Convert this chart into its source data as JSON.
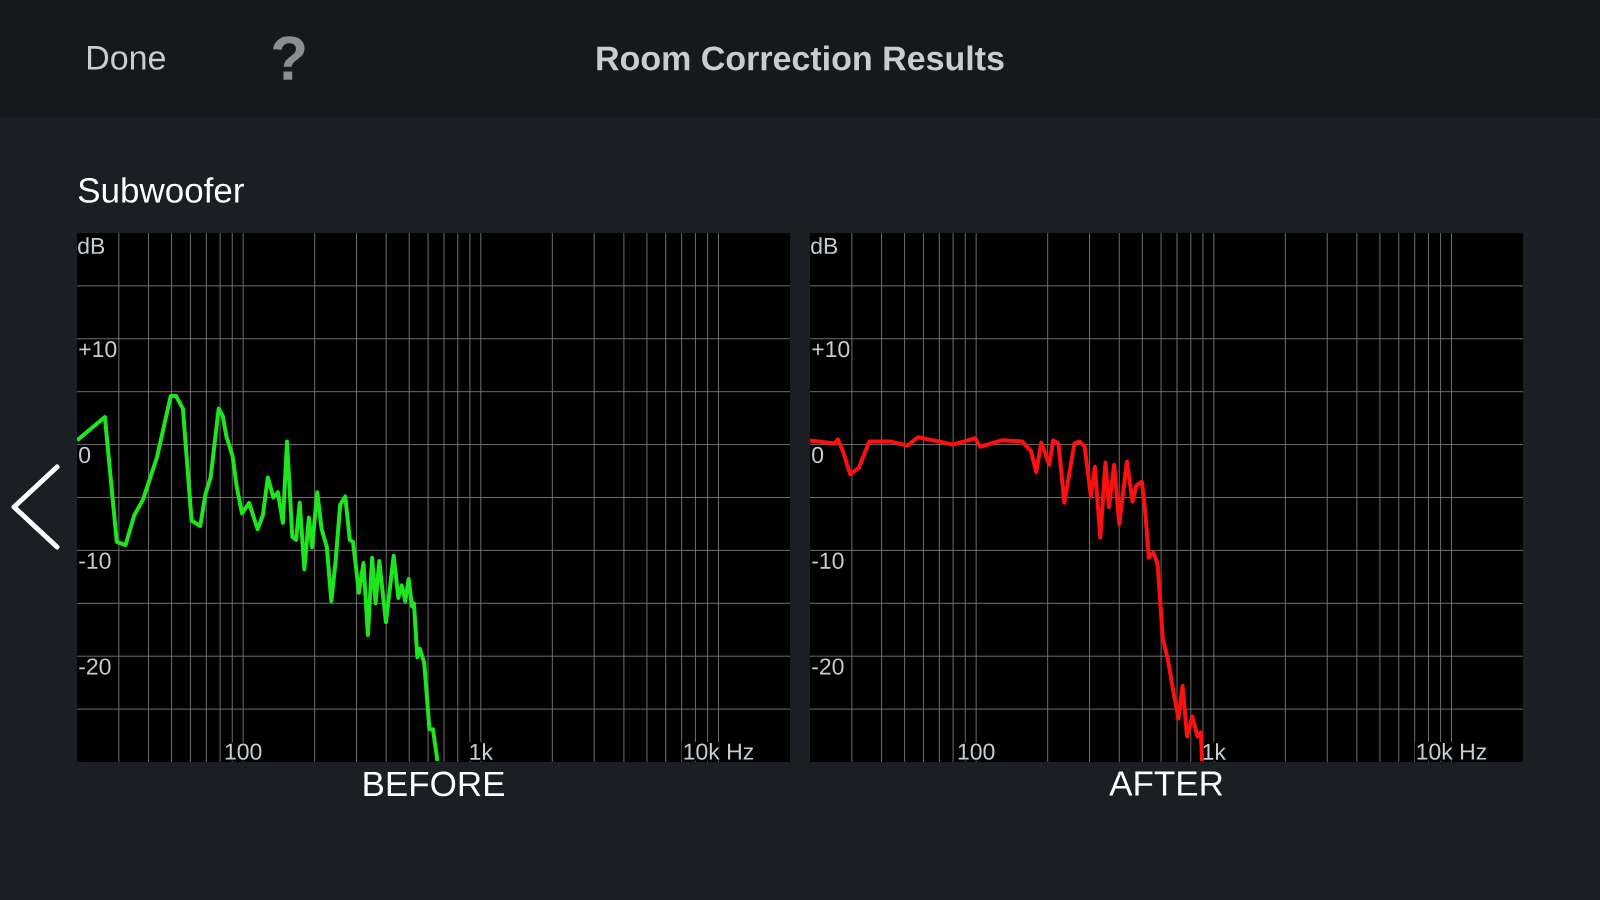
{
  "chart_data": [
    {
      "type": "line",
      "title": "Room Correction Results",
      "subtitle": "Subwoofer",
      "annotations": [
        "Done",
        "?"
      ],
      "xlabel": "BEFORE",
      "ylabel": "dB",
      "log": "x",
      "grid": true,
      "xlim": [
        20,
        20000
      ],
      "ylim": [
        -30,
        20
      ],
      "xticks": [
        {
          "value": 30,
          "label": null
        },
        {
          "value": 40,
          "label": null
        },
        {
          "value": 50,
          "label": null
        },
        {
          "value": 60,
          "label": null
        },
        {
          "value": 70,
          "label": null
        },
        {
          "value": 80,
          "label": null
        },
        {
          "value": 90,
          "label": null
        },
        {
          "value": 100,
          "label": "100"
        },
        {
          "value": 200,
          "label": null
        },
        {
          "value": 300,
          "label": null
        },
        {
          "value": 400,
          "label": null
        },
        {
          "value": 500,
          "label": null
        },
        {
          "value": 600,
          "label": null
        },
        {
          "value": 700,
          "label": null
        },
        {
          "value": 800,
          "label": null
        },
        {
          "value": 900,
          "label": null
        },
        {
          "value": 1000,
          "label": "1k"
        },
        {
          "value": 2000,
          "label": null
        },
        {
          "value": 3000,
          "label": null
        },
        {
          "value": 4000,
          "label": null
        },
        {
          "value": 5000,
          "label": null
        },
        {
          "value": 6000,
          "label": null
        },
        {
          "value": 7000,
          "label": null
        },
        {
          "value": 8000,
          "label": null
        },
        {
          "value": 9000,
          "label": null
        },
        {
          "value": 10000,
          "label": "10k Hz"
        }
      ],
      "yticks": [
        {
          "value": 15,
          "label": null
        },
        {
          "value": 10,
          "label": "+10"
        },
        {
          "value": 5,
          "label": null
        },
        {
          "value": 0,
          "label": "0"
        },
        {
          "value": -5,
          "label": null
        },
        {
          "value": -10,
          "label": "-10"
        },
        {
          "value": -15,
          "label": null
        },
        {
          "value": -20,
          "label": "-20"
        },
        {
          "value": -25,
          "label": null
        }
      ],
      "x": [
        20.0,
        26.2,
        29.4,
        32.0,
        34.8,
        37.9,
        43.4,
        49.6,
        52.2,
        55.8,
        60.7,
        66.0,
        69.4,
        73.0,
        78.9,
        82.1,
        85.0,
        90.3,
        94.0,
        98.9,
        106,
        115,
        121,
        127,
        134,
        140,
        147,
        153,
        161,
        167,
        173,
        181,
        189,
        195,
        205,
        214,
        225,
        235,
        245,
        256,
        269,
        281,
        290,
        307,
        321,
        335,
        349,
        361,
        374,
        399,
        430,
        450,
        465,
        481,
        497,
        514,
        523,
        541,
        554,
        578,
        608,
        629,
        657
      ],
      "series": [
        {
          "color": "#1ee61e",
          "values": [
            0.4,
            2.6,
            -9.2,
            -9.5,
            -6.7,
            -5.2,
            -1.2,
            4.6,
            4.6,
            3.4,
            -7.2,
            -7.7,
            -4.7,
            -3.1,
            3.4,
            2.7,
            0.8,
            -1.1,
            -4.0,
            -6.5,
            -5.5,
            -8.0,
            -6.7,
            -3.1,
            -5.0,
            -4.5,
            -7.4,
            0.3,
            -8.7,
            -9.0,
            -5.5,
            -11.8,
            -6.9,
            -9.7,
            -4.5,
            -8.0,
            -9.7,
            -14.8,
            -11.0,
            -5.7,
            -4.9,
            -9.0,
            -9.2,
            -14.0,
            -11.2,
            -18.0,
            -10.7,
            -15.0,
            -11.0,
            -16.8,
            -10.5,
            -14.5,
            -13.3,
            -14.8,
            -12.7,
            -15.3,
            -15.0,
            -20.1,
            -19.3,
            -20.6,
            -26.9,
            -26.9,
            -29.9
          ]
        }
      ]
    },
    {
      "type": "line",
      "xlabel": "AFTER",
      "ylabel": "dB",
      "log": "x",
      "grid": true,
      "xlim": [
        20,
        20000
      ],
      "ylim": [
        -30,
        20
      ],
      "xticks": [
        {
          "value": 30,
          "label": null
        },
        {
          "value": 40,
          "label": null
        },
        {
          "value": 50,
          "label": null
        },
        {
          "value": 60,
          "label": null
        },
        {
          "value": 70,
          "label": null
        },
        {
          "value": 80,
          "label": null
        },
        {
          "value": 90,
          "label": null
        },
        {
          "value": 100,
          "label": "100"
        },
        {
          "value": 200,
          "label": null
        },
        {
          "value": 300,
          "label": null
        },
        {
          "value": 400,
          "label": null
        },
        {
          "value": 500,
          "label": null
        },
        {
          "value": 600,
          "label": null
        },
        {
          "value": 700,
          "label": null
        },
        {
          "value": 800,
          "label": null
        },
        {
          "value": 900,
          "label": null
        },
        {
          "value": 1000,
          "label": "1k"
        },
        {
          "value": 2000,
          "label": null
        },
        {
          "value": 3000,
          "label": null
        },
        {
          "value": 4000,
          "label": null
        },
        {
          "value": 5000,
          "label": null
        },
        {
          "value": 6000,
          "label": null
        },
        {
          "value": 7000,
          "label": null
        },
        {
          "value": 8000,
          "label": null
        },
        {
          "value": 9000,
          "label": null
        },
        {
          "value": 10000,
          "label": "10k Hz"
        }
      ],
      "yticks": [
        {
          "value": 15,
          "label": null
        },
        {
          "value": 10,
          "label": "+10"
        },
        {
          "value": 5,
          "label": null
        },
        {
          "value": 0,
          "label": "0"
        },
        {
          "value": -5,
          "label": null
        },
        {
          "value": -10,
          "label": "-10"
        },
        {
          "value": -15,
          "label": null
        },
        {
          "value": -20,
          "label": "-20"
        },
        {
          "value": -25,
          "label": null
        }
      ],
      "x": [
        20.0,
        25.4,
        26.2,
        27.6,
        29.5,
        32.1,
        35.5,
        43.4,
        51.4,
        56.9,
        69.6,
        79.6,
        99.1,
        104,
        128,
        156,
        170,
        179,
        188,
        203,
        211,
        222,
        235,
        259,
        272,
        286,
        304,
        316,
        333,
        350,
        362,
        381,
        400,
        431,
        455,
        471,
        498,
        515,
        533,
        557,
        580,
        610,
        641,
        675,
        710,
        739,
        772,
        812,
        854,
        883,
        892
      ],
      "series": [
        {
          "color": "#ff1010",
          "values": [
            0.4,
            0.1,
            0.5,
            -0.7,
            -2.8,
            -2.2,
            0.3,
            0.3,
            -0.1,
            0.7,
            0.3,
            0.0,
            0.6,
            -0.2,
            0.4,
            0.3,
            -0.6,
            -2.6,
            0.2,
            -1.9,
            0.4,
            0.1,
            -5.5,
            0.1,
            0.3,
            -0.2,
            -4.9,
            -2.1,
            -8.8,
            -1.7,
            -5.9,
            -1.9,
            -7.5,
            -1.6,
            -5.4,
            -3.9,
            -3.5,
            -6.4,
            -10.7,
            -10.2,
            -11.3,
            -18.3,
            -20.3,
            -23.3,
            -25.9,
            -22.8,
            -27.6,
            -25.7,
            -27.6,
            -27.2,
            -29.9
          ]
        }
      ]
    }
  ]
}
